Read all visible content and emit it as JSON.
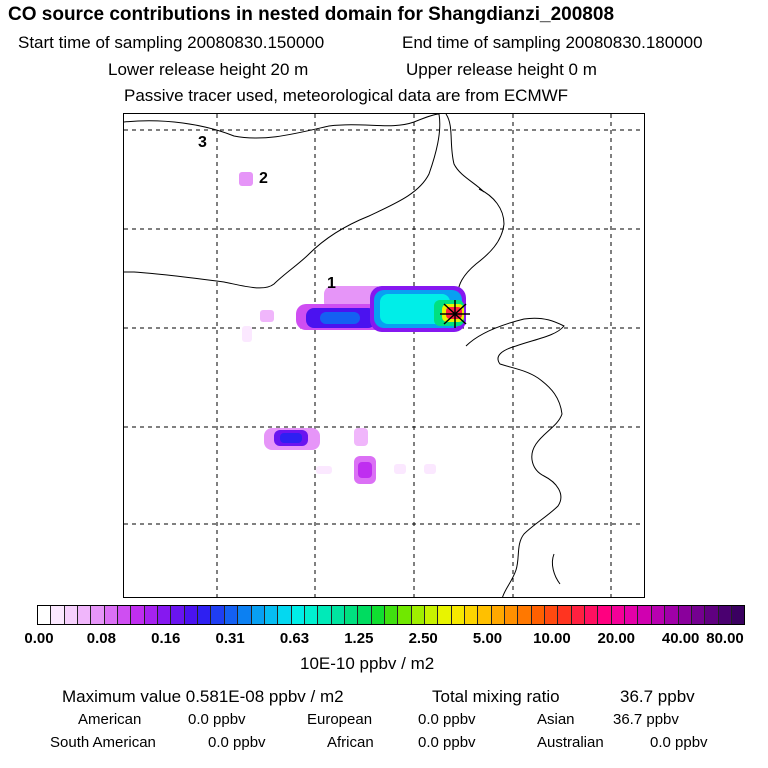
{
  "chart_data": {
    "type": "heatmap",
    "title": "CO  source contributions in nested domain for Shangdianzi_200808",
    "start_sampling": "Start time of sampling 20080830.150000",
    "end_sampling": "End time of sampling 20080830.180000",
    "lower_release": "Lower release height   20 m",
    "upper_release": "Upper release height    0 m",
    "tracer_note": "Passive tracer used, meteorological data are from ECMWF",
    "map_labels": [
      "1",
      "2",
      "3"
    ],
    "colorbar": {
      "ticks": [
        "0.00",
        "0.08",
        "0.16",
        "0.31",
        "0.63",
        "1.25",
        "2.50",
        "5.00",
        "10.00",
        "20.00",
        "40.00",
        "80.00"
      ],
      "unit": "10E-10 ppbv / m2",
      "colors": [
        "#ffffff",
        "#fbe8ff",
        "#f6d0fd",
        "#f0b6fb",
        "#e695f8",
        "#db70f5",
        "#cf4ef2",
        "#bf2ef0",
        "#a622f0",
        "#8618f0",
        "#6a14f0",
        "#4b12f0",
        "#2e20f2",
        "#1f3ef2",
        "#1460f2",
        "#0c80f2",
        "#08a0f2",
        "#06bdf2",
        "#04d8f0",
        "#00eee8",
        "#00f0d0",
        "#00eab8",
        "#00e4a0",
        "#00e080",
        "#00dc60",
        "#10de30",
        "#40e010",
        "#70e800",
        "#a0ee00",
        "#c8f200",
        "#e8f400",
        "#f6e800",
        "#fcd400",
        "#ffc000",
        "#ffa800",
        "#ff9000",
        "#ff7800",
        "#ff6000",
        "#ff4a10",
        "#ff3420",
        "#ff2040",
        "#ff1060",
        "#ff0080",
        "#f40098",
        "#e400a8",
        "#d000b0",
        "#b800b0",
        "#a000a8",
        "#8a009c",
        "#740090",
        "#600080",
        "#4a0070",
        "#3a0060"
      ]
    },
    "stats": {
      "maximum": "Maximum value  0.581E-08 ppbv / m2",
      "total": "Total mixing ratio",
      "total_value": "36.7 ppbv",
      "regions": [
        {
          "name": "American",
          "value": "0.0 ppbv"
        },
        {
          "name": "European",
          "value": "0.0 ppbv"
        },
        {
          "name": "Asian",
          "value": "36.7 ppbv"
        },
        {
          "name": "South American",
          "value": "0.0 ppbv"
        },
        {
          "name": "African",
          "value": "0.0 ppbv"
        },
        {
          "name": "Australian",
          "value": "0.0 ppbv"
        }
      ]
    }
  }
}
